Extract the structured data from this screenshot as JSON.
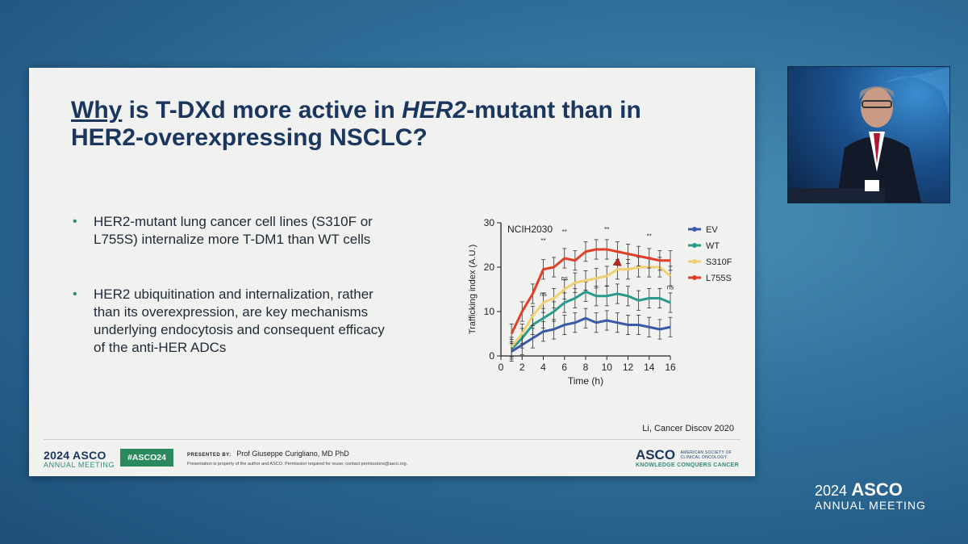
{
  "slide": {
    "title_why": "Why",
    "title_rest1": " is T-DXd more active in ",
    "title_italic": "HER2",
    "title_rest2": "-mutant than in",
    "title_line2": "HER2-overexpressing NSCLC?",
    "bullets": [
      "HER2-mutant lung cancer cell lines (S310F or L755S) internalize more T-DM1 than WT cells",
      "HER2 ubiquitination and internalization, rather than its overexpression, are key mechanisms underlying endocytosis and consequent efficacy of the anti-HER ADCs"
    ],
    "citation": "Li, Cancer Discov 2020"
  },
  "chart_data": {
    "type": "line",
    "title": "NCIH2030",
    "xlabel": "Time (h)",
    "ylabel": "Trafficking index (A.U.)",
    "xlim": [
      0,
      16
    ],
    "ylim": [
      0,
      30
    ],
    "xticks": [
      0,
      2,
      4,
      6,
      8,
      10,
      12,
      14,
      16
    ],
    "yticks": [
      0,
      10,
      20,
      30
    ],
    "x": [
      1,
      2,
      3,
      4,
      5,
      6,
      7,
      8,
      9,
      10,
      11,
      12,
      13,
      14,
      15,
      16
    ],
    "legend_position": "right",
    "series": [
      {
        "name": "EV",
        "color": "#3a5aa8",
        "values": [
          1,
          2.5,
          4,
          5.5,
          6,
          7,
          7.5,
          8.5,
          7.5,
          8,
          7.5,
          7,
          7,
          6.5,
          6,
          6.5
        ]
      },
      {
        "name": "WT",
        "color": "#2a9a8a",
        "values": [
          1.5,
          4,
          7,
          8.5,
          10,
          12,
          13,
          14.5,
          13.5,
          13.5,
          14,
          13.5,
          12.5,
          13,
          13,
          12
        ]
      },
      {
        "name": "S310F",
        "color": "#f0d070",
        "values": [
          2,
          5,
          9,
          12,
          13,
          15,
          16.5,
          17,
          17.5,
          18,
          19.5,
          19.5,
          20,
          20,
          20,
          18
        ]
      },
      {
        "name": "L755S",
        "color": "#e0402a",
        "values": [
          5,
          10,
          14,
          19.5,
          20,
          22,
          21.5,
          23.5,
          24,
          24,
          23.5,
          23,
          22.5,
          22,
          21.5,
          21.5
        ]
      }
    ],
    "annotations": [
      "**",
      "**",
      "**",
      "**",
      "ns",
      "ns",
      "ns"
    ]
  },
  "footer": {
    "asco_year": "2024",
    "asco_brand": "ASCO",
    "asco_sub": "ANNUAL MEETING",
    "hashtag": "#ASCO24",
    "presented_label": "PRESENTED BY:",
    "presenter": "Prof Giuseppe Curigliano, MD PhD",
    "notice": "Presentation is property of the author and ASCO. Permission required for reuse; contact permissions@asco.org.",
    "right_brand": "ASCO",
    "right_society": "AMERICAN SOCIETY OF CLINICAL ONCOLOGY",
    "right_tagline": "KNOWLEDGE CONQUERS CANCER"
  },
  "bottom_brand": {
    "year": "2024",
    "name": "ASCO",
    "sub": "ANNUAL MEETING"
  },
  "colors": {
    "title": "#1b3760",
    "accent_green": "#2a8a5e",
    "background": "#2f6f9a"
  }
}
